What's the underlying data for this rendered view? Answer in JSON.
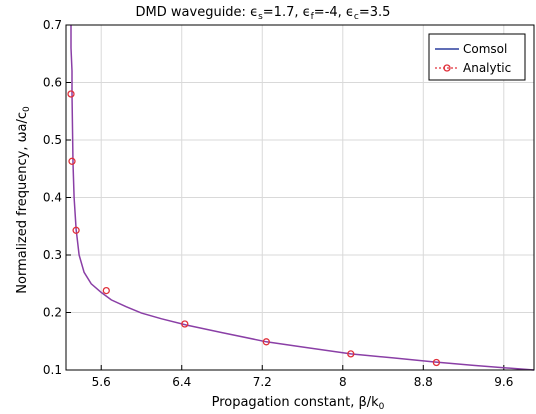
{
  "chart_data": {
    "type": "line",
    "title": "DMD waveguide: ϵs=1.7, ϵf=-4, ϵc=3.5",
    "title_parts": {
      "prefix": "DMD waveguide: ",
      "eps": "ϵ",
      "s_sub": "s",
      "s_val": "=1.7, ",
      "f_sub": "f",
      "f_val": "=-4, ",
      "c_sub": "c",
      "c_val": "=3.5"
    },
    "xlabel": "Propagation constant, β/k0",
    "xlabel_parts": {
      "main": "Propagation constant, β/k",
      "sub": "0"
    },
    "ylabel": "Normalized frequency, ωa/c0",
    "ylabel_parts": {
      "main": "Normalized frequency, ωa/c",
      "sub": "0"
    },
    "xlim": [
      5.25,
      9.9
    ],
    "ylim": [
      0.1,
      0.7
    ],
    "x_ticks": [
      5.6,
      6.4,
      7.2,
      8,
      8.8,
      9.6
    ],
    "x_tick_labels": [
      "5.6",
      "6.4",
      "7.2",
      "8",
      "8.8",
      "9.6"
    ],
    "y_ticks": [
      0.1,
      0.2,
      0.3,
      0.4,
      0.5,
      0.6,
      0.7
    ],
    "y_tick_labels": [
      "0.1",
      "0.2",
      "0.3",
      "0.4",
      "0.5",
      "0.6",
      "0.7"
    ],
    "grid": true,
    "legend_position": "top-right",
    "series": [
      {
        "name": "Comsol",
        "color": "#8a3fa6",
        "legend_color": "#2b3f9e",
        "style": "line",
        "x": [
          5.3,
          5.3,
          5.31,
          5.31,
          5.315,
          5.32,
          5.33,
          5.35,
          5.38,
          5.43,
          5.5,
          5.6,
          5.7,
          5.85,
          6.0,
          6.2,
          6.45,
          6.8,
          7.24,
          7.6,
          8.08,
          8.5,
          8.9,
          9.3,
          9.6,
          9.9
        ],
        "y": [
          0.7,
          0.66,
          0.62,
          0.58,
          0.52,
          0.46,
          0.4,
          0.345,
          0.3,
          0.27,
          0.25,
          0.235,
          0.222,
          0.21,
          0.199,
          0.189,
          0.178,
          0.165,
          0.149,
          0.14,
          0.128,
          0.121,
          0.114,
          0.108,
          0.104,
          0.1
        ]
      },
      {
        "name": "Analytic",
        "color": "#e0303a",
        "style": "markers",
        "x": [
          5.3,
          5.31,
          5.35,
          5.65,
          6.43,
          7.24,
          8.08,
          8.93
        ],
        "y": [
          0.58,
          0.463,
          0.343,
          0.238,
          0.18,
          0.149,
          0.128,
          0.113
        ]
      }
    ]
  }
}
